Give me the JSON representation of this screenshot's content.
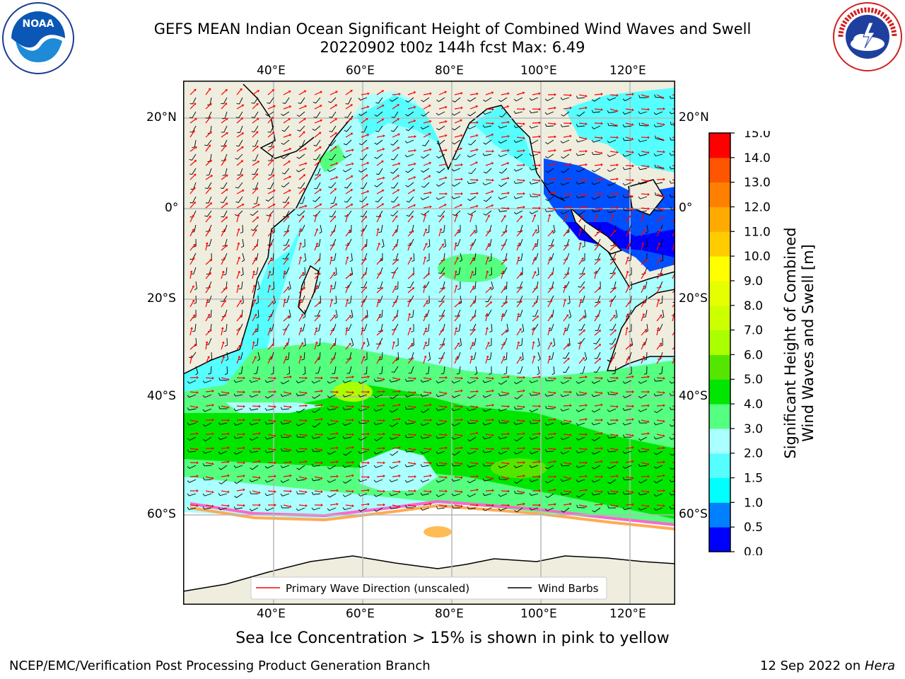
{
  "header": {
    "title_line1": "GEFS MEAN Indian Ocean Significant Height of Combined Wind Waves and Swell",
    "title_line2": "20220902 t00z 144h fcst   Max: 6.49"
  },
  "logos": {
    "left": "noaa-logo",
    "left_text": "NOAA",
    "right": "nws-logo",
    "right_text": "NATIONAL WEATHER SERVICE"
  },
  "map": {
    "lon_labels": [
      "40°E",
      "60°E",
      "80°E",
      "100°E",
      "120°E"
    ],
    "lat_labels": [
      "20°N",
      "0°",
      "20°S",
      "40°S",
      "60°S"
    ],
    "colors": {
      "land": "#efedde",
      "ocean_light": "#aaffff",
      "ice": "#ffffff"
    }
  },
  "legend": {
    "wave_label": "Primary Wave Direction (unscaled)",
    "wind_label": "Wind Barbs",
    "wave_color": "#ff0000",
    "wind_color": "#000000"
  },
  "colorbar": {
    "label_line1": "Significant Height of Combined",
    "label_line2": "Wind Waves and Swell [m]",
    "ticks": [
      "0.0",
      "0.5",
      "1.0",
      "1.5",
      "2.0",
      "3.0",
      "4.0",
      "5.0",
      "6.0",
      "7.0",
      "8.0",
      "9.0",
      "10.0",
      "11.0",
      "12.0",
      "13.0",
      "14.0",
      "15.0"
    ],
    "colors": [
      "#0000ff",
      "#0080ff",
      "#00ffff",
      "#55ffff",
      "#aaffff",
      "#55ff80",
      "#00e600",
      "#55e600",
      "#aaff00",
      "#ccff00",
      "#e6ff00",
      "#ffff00",
      "#ffcc00",
      "#ffaa00",
      "#ff8000",
      "#ff5500",
      "#ff0000"
    ]
  },
  "caption": "Sea Ice Concentration > 15% is shown in pink to yellow",
  "footer": {
    "left": "NCEP/EMC/Verification Post Processing Product Generation Branch",
    "right_prefix": "12 Sep 2022 on ",
    "right_host": "Hera"
  }
}
